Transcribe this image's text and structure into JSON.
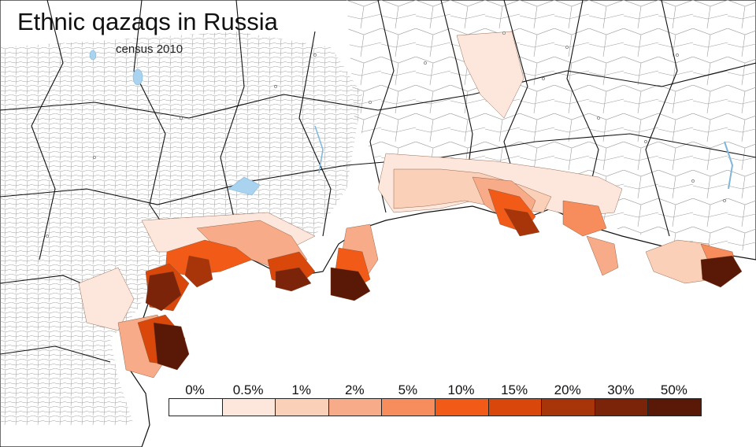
{
  "title": "Ethnic qazaqs in Russia",
  "subtitle": "census 2010",
  "legend": [
    {
      "label": "0%",
      "color": "#ffffff"
    },
    {
      "label": "0.5%",
      "color": "#fde7dc"
    },
    {
      "label": "1%",
      "color": "#fbd0b9"
    },
    {
      "label": "2%",
      "color": "#f8ab88"
    },
    {
      "label": "5%",
      "color": "#f78c5c"
    },
    {
      "label": "10%",
      "color": "#f25b17"
    },
    {
      "label": "15%",
      "color": "#d9470b"
    },
    {
      "label": "20%",
      "color": "#a8350a"
    },
    {
      "label": "30%",
      "color": "#7b2409"
    },
    {
      "label": "50%",
      "color": "#5a1806"
    }
  ],
  "colors": {
    "border_major": "#111111",
    "border_minor": "#9a9a9a",
    "water": "#a9d3ef"
  }
}
